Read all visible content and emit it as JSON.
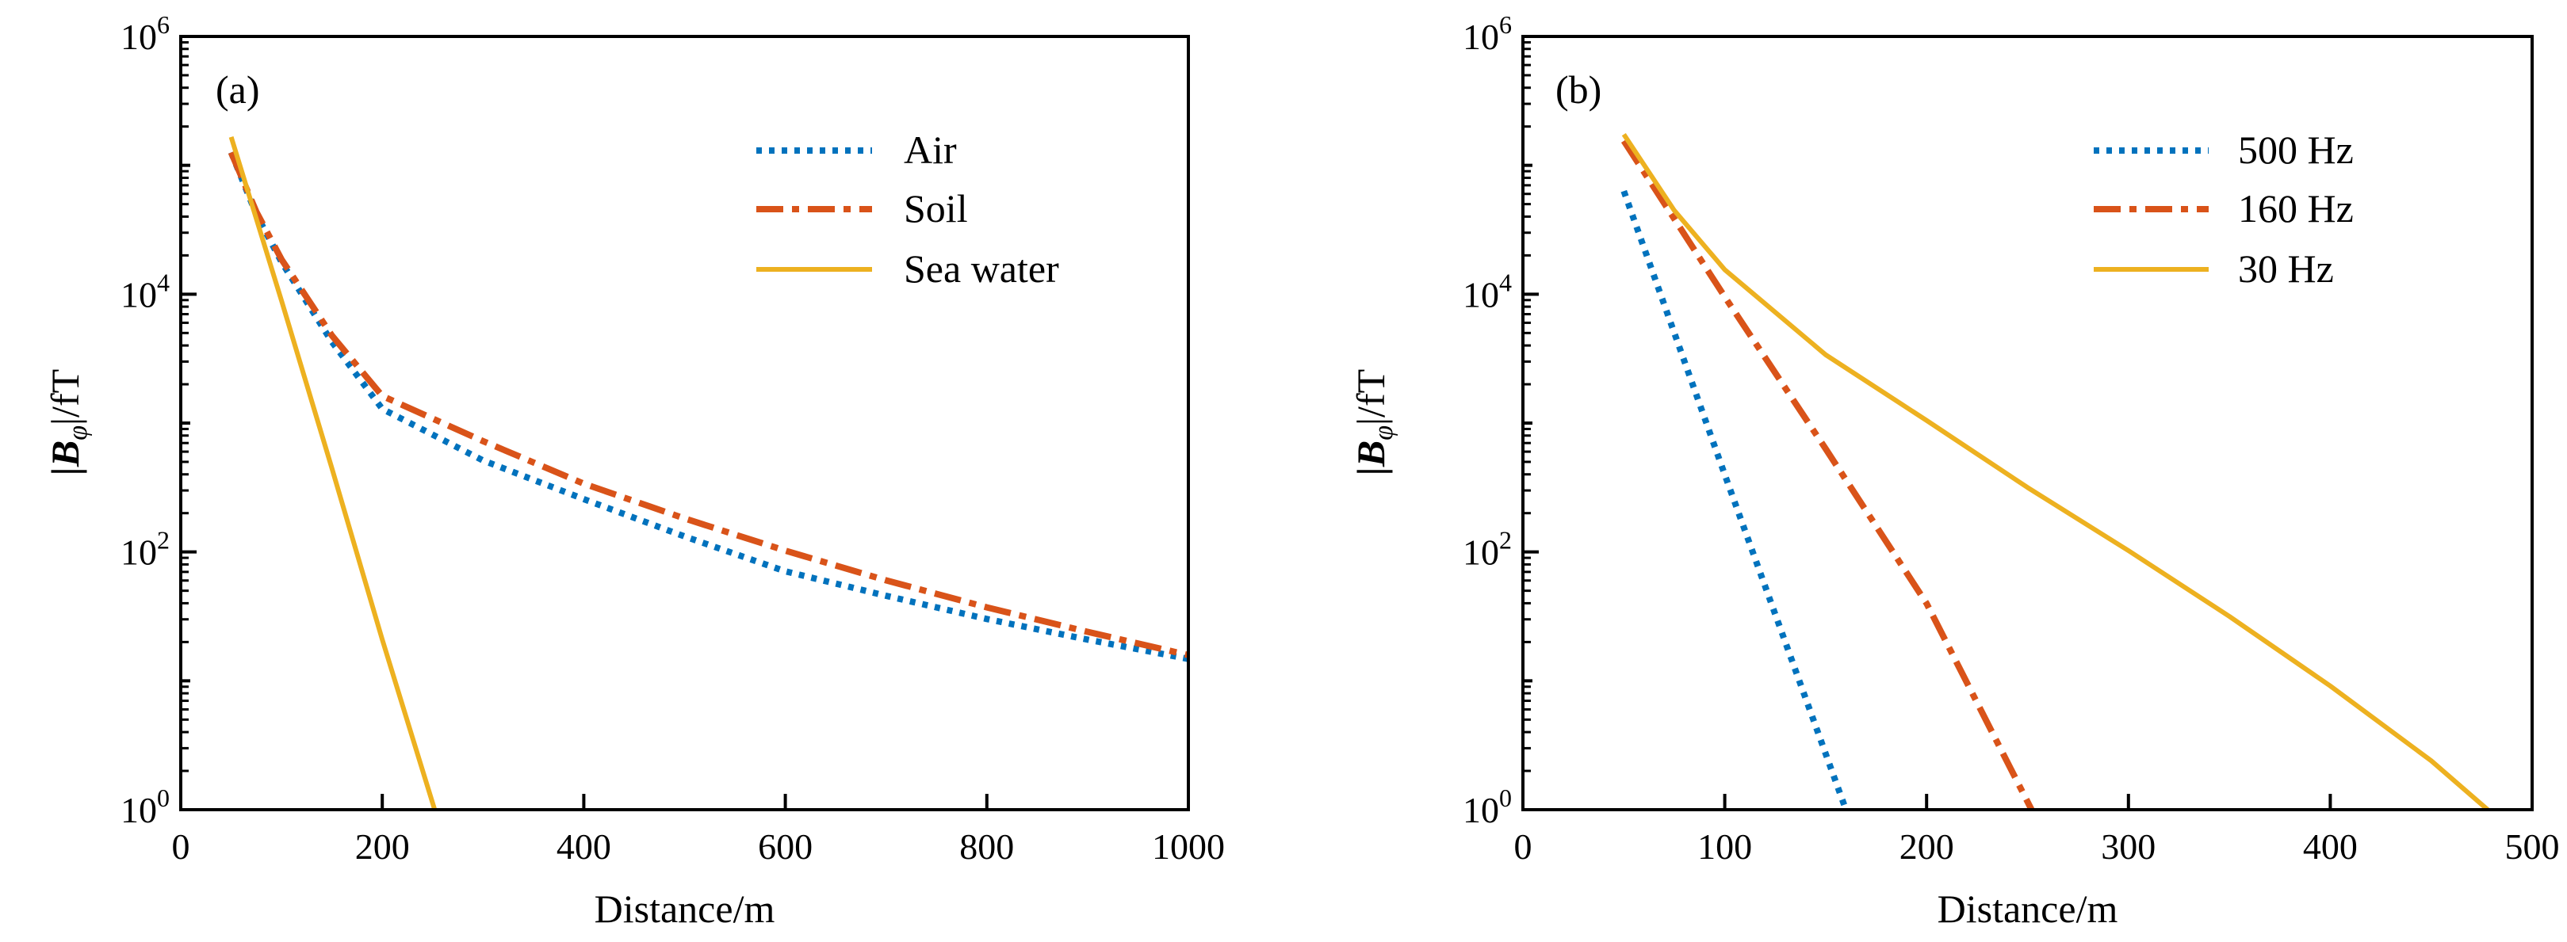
{
  "chart_data": [
    {
      "type": "line",
      "panel_label": "(a)",
      "xlabel": "Distance/m",
      "ylabel": "|B_φ|/fT",
      "ylabel_main": "|B",
      "ylabel_sub": "φ",
      "ylabel_tail": "|/fT",
      "xlim": [
        0,
        1000
      ],
      "ylim": [
        1,
        1000000
      ],
      "yscale": "log",
      "xticks": [
        0,
        200,
        400,
        600,
        800,
        1000
      ],
      "xtick_labels": [
        "0",
        "200",
        "400",
        "600",
        "800",
        "1000"
      ],
      "yticks_exp": [
        0,
        2,
        4,
        6
      ],
      "legend_position": "top-right",
      "series": [
        {
          "name": "Air",
          "style": "dotted",
          "color": "#0072BD",
          "x": [
            50,
            75,
            100,
            150,
            200,
            300,
            400,
            500,
            600,
            700,
            800,
            900,
            1000
          ],
          "log10y": [
            5.1,
            4.62,
            4.25,
            3.63,
            3.11,
            2.71,
            2.41,
            2.12,
            1.85,
            1.66,
            1.48,
            1.32,
            1.17
          ]
        },
        {
          "name": "Soil",
          "style": "dashdot",
          "color": "#D95319",
          "x": [
            50,
            75,
            100,
            150,
            200,
            300,
            400,
            500,
            600,
            700,
            800,
            900,
            1000
          ],
          "log10y": [
            5.1,
            4.64,
            4.27,
            3.68,
            3.21,
            2.86,
            2.53,
            2.26,
            2.01,
            1.78,
            1.57,
            1.38,
            1.2
          ]
        },
        {
          "name": "Sea water",
          "style": "solid",
          "color": "#EDB120",
          "x": [
            50,
            100,
            150,
            200,
            252
          ],
          "log10y": [
            5.22,
            3.95,
            2.65,
            1.32,
            0
          ]
        }
      ]
    },
    {
      "type": "line",
      "panel_label": "(b)",
      "xlabel": "Distance/m",
      "ylabel": "|B_φ|/fT",
      "ylabel_main": "|B",
      "ylabel_sub": "φ",
      "ylabel_tail": "|/fT",
      "xlim": [
        0,
        500
      ],
      "ylim": [
        1,
        1000000
      ],
      "yscale": "log",
      "xticks": [
        0,
        100,
        200,
        300,
        400,
        500
      ],
      "xtick_labels": [
        "0",
        "100",
        "200",
        "300",
        "400",
        "500"
      ],
      "yticks_exp": [
        0,
        2,
        4,
        6
      ],
      "legend_position": "top-right",
      "series": [
        {
          "name": "500 Hz",
          "style": "dotted",
          "color": "#0072BD",
          "x": [
            50,
            100,
            160
          ],
          "log10y": [
            4.8,
            2.6,
            0
          ]
        },
        {
          "name": "160 Hz",
          "style": "dashdot",
          "color": "#D95319",
          "x": [
            50,
            100,
            150,
            200,
            252
          ],
          "log10y": [
            5.19,
            3.98,
            2.8,
            1.6,
            0
          ]
        },
        {
          "name": "30 Hz",
          "style": "solid",
          "color": "#EDB120",
          "x": [
            50,
            75,
            100,
            150,
            200,
            250,
            300,
            350,
            400,
            450,
            478
          ],
          "log10y": [
            5.24,
            4.65,
            4.19,
            3.53,
            3.02,
            2.5,
            2.01,
            1.5,
            0.96,
            0.38,
            0
          ]
        }
      ]
    }
  ]
}
